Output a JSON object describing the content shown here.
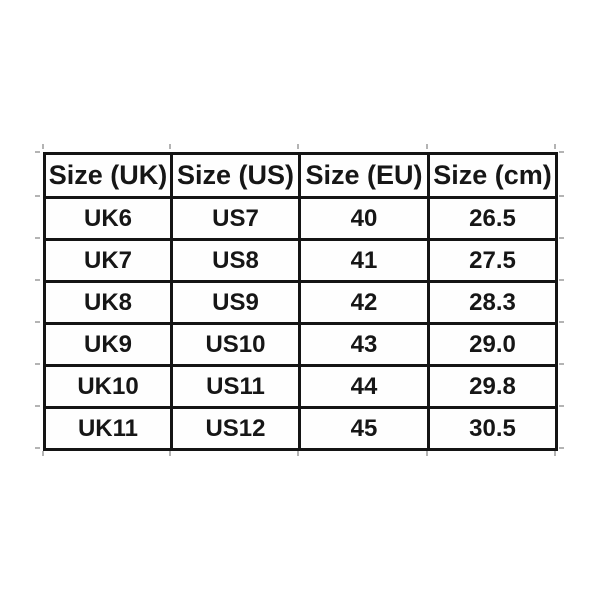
{
  "chart_data": {
    "type": "table",
    "columns": [
      "Size (UK)",
      "Size (US)",
      "Size (EU)",
      "Size (cm)"
    ],
    "rows": [
      [
        "UK6",
        "US7",
        "40",
        "26.5"
      ],
      [
        "UK7",
        "US8",
        "41",
        "27.5"
      ],
      [
        "UK8",
        "US9",
        "42",
        "28.3"
      ],
      [
        "UK9",
        "US10",
        "43",
        "29.0"
      ],
      [
        "UK10",
        "US11",
        "44",
        "29.8"
      ],
      [
        "UK11",
        "US12",
        "45",
        "30.5"
      ]
    ],
    "layout": {
      "grid": "off",
      "border_color": "#141414",
      "text_color": "#161616",
      "background_color": "#ffffff",
      "tick_color": "#b4b4b4"
    }
  }
}
